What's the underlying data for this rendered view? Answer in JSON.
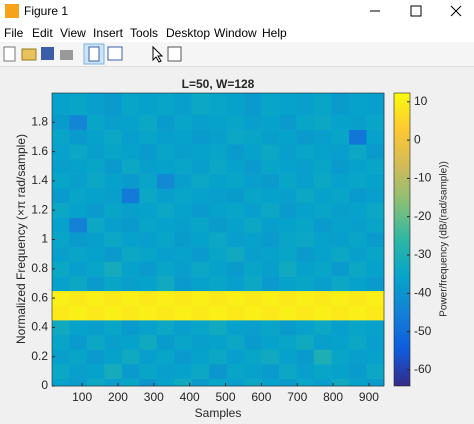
{
  "window": {
    "title": "Figure 1",
    "menu": [
      "File",
      "Edit",
      "View",
      "Insert",
      "Tools",
      "Desktop",
      "Window",
      "Help"
    ]
  },
  "chart_data": {
    "type": "heatmap",
    "title": "L=50, W=128",
    "x_label": "Samples",
    "y_label": "Normalized Frequency  (×π rad/sample)",
    "colorbar_label": "Power/frequency (dB/(rad/sample))",
    "x": [
      40,
      89,
      138,
      187,
      235,
      284,
      333,
      381,
      430,
      479,
      528,
      576,
      625,
      674,
      722,
      771,
      820,
      869,
      917
    ],
    "y": [
      0,
      0.1,
      0.2,
      0.3,
      0.4,
      0.5,
      0.6,
      0.7,
      0.8,
      0.9,
      1.0,
      1.1,
      1.2,
      1.3,
      1.4,
      1.5,
      1.6,
      1.7,
      1.8,
      1.9
    ],
    "z": [
      [
        -36,
        -38,
        -34,
        -37,
        -35,
        -39,
        -36,
        -33,
        -38,
        -35,
        -37,
        -34,
        -36,
        -38,
        -35,
        -37,
        -33,
        -36,
        -38
      ],
      [
        -34,
        -37,
        -36,
        -32,
        -38,
        -35,
        -37,
        -36,
        -34,
        -39,
        -35,
        -36,
        -38,
        -34,
        -37,
        -35,
        -36,
        -38,
        -34
      ],
      [
        -37,
        -35,
        -38,
        -36,
        -33,
        -37,
        -35,
        -38,
        -36,
        -34,
        -37,
        -35,
        -33,
        -36,
        -38,
        -30,
        -35,
        -37,
        -36
      ],
      [
        -35,
        -38,
        -34,
        -37,
        -36,
        -33,
        -38,
        -35,
        -37,
        -36,
        -34,
        -38,
        -36,
        -35,
        -33,
        -37,
        -36,
        -34,
        -37
      ],
      [
        -33,
        -36,
        -37,
        -35,
        -38,
        -36,
        -34,
        -37,
        -35,
        -33,
        -36,
        -37,
        -35,
        -38,
        -36,
        -34,
        -37,
        -35,
        -36
      ],
      [
        9,
        10,
        9,
        10,
        9,
        10,
        9,
        10,
        9,
        10,
        9,
        10,
        9,
        10,
        9,
        10,
        9,
        10,
        9
      ],
      [
        10,
        9,
        10,
        9,
        10,
        9,
        10,
        9,
        10,
        9,
        10,
        9,
        10,
        9,
        10,
        9,
        10,
        9,
        10
      ],
      [
        -36,
        -34,
        -38,
        -35,
        -37,
        -36,
        -33,
        -38,
        -36,
        -35,
        -37,
        -34,
        -38,
        -36,
        -35,
        -37,
        -34,
        -36,
        -38
      ],
      [
        -34,
        -37,
        -35,
        -32,
        -36,
        -38,
        -35,
        -37,
        -34,
        -36,
        -38,
        -35,
        -37,
        -33,
        -36,
        -35,
        -38,
        -34,
        -36
      ],
      [
        -37,
        -35,
        -36,
        -38,
        -34,
        -35,
        -37,
        -36,
        -38,
        -35,
        -33,
        -37,
        -36,
        -35,
        -38,
        -36,
        -34,
        -37,
        -35
      ],
      [
        -35,
        -38,
        -37,
        -34,
        -36,
        -37,
        -35,
        -38,
        -36,
        -34,
        -37,
        -36,
        -38,
        -35,
        -34,
        -36,
        -37,
        -35,
        -38
      ],
      [
        -36,
        -45,
        -34,
        -37,
        -38,
        -35,
        -36,
        -37,
        -35,
        -38,
        -36,
        -34,
        -37,
        -36,
        -35,
        -38,
        -36,
        -37,
        -35
      ],
      [
        -34,
        -36,
        -38,
        -35,
        -37,
        -36,
        -34,
        -36,
        -38,
        -36,
        -35,
        -37,
        -34,
        -38,
        -36,
        -35,
        -37,
        -36,
        -34
      ],
      [
        -38,
        -35,
        -36,
        -37,
        -47,
        -34,
        -37,
        -35,
        -36,
        -37,
        -38,
        -35,
        -36,
        -37,
        -34,
        -36,
        -35,
        -38,
        -37
      ],
      [
        -35,
        -37,
        -34,
        -36,
        -38,
        -35,
        -43,
        -37,
        -34,
        -36,
        -35,
        -37,
        -38,
        -35,
        -37,
        -34,
        -36,
        -35,
        -36
      ],
      [
        -37,
        -36,
        -35,
        -38,
        -34,
        -37,
        -36,
        -35,
        -37,
        -34,
        -36,
        -38,
        -35,
        -36,
        -37,
        -35,
        -38,
        -36,
        -35
      ],
      [
        -36,
        -34,
        -37,
        -35,
        -36,
        -38,
        -35,
        -37,
        -36,
        -35,
        -38,
        -36,
        -34,
        -37,
        -35,
        -36,
        -37,
        -34,
        -38
      ],
      [
        -35,
        -38,
        -36,
        -34,
        -37,
        -35,
        -37,
        -36,
        -38,
        -37,
        -34,
        -35,
        -37,
        -36,
        -38,
        -37,
        -35,
        -48,
        -36
      ],
      [
        -38,
        -44,
        -35,
        -37,
        -36,
        -34,
        -38,
        -35,
        -37,
        -36,
        -35,
        -37,
        -36,
        -38,
        -35,
        -34,
        -36,
        -37,
        -35
      ],
      [
        -36,
        -35,
        -37,
        -38,
        -35,
        -36,
        -35,
        -37,
        -34,
        -35,
        -36,
        -38,
        -35,
        -36,
        -37,
        -35,
        -38,
        -36,
        -37
      ]
    ],
    "xlim": [
      16,
      942
    ],
    "ylim": [
      0,
      2
    ],
    "clim": [
      -64.2,
      12.3
    ],
    "xticks": [
      100,
      200,
      300,
      400,
      500,
      600,
      700,
      800,
      900
    ],
    "yticks": [
      0,
      0.2,
      0.4,
      0.6,
      0.8,
      1,
      1.2,
      1.4,
      1.6,
      1.8
    ],
    "cticks": [
      10,
      0,
      -10,
      -20,
      -30,
      -40,
      -50,
      -60
    ],
    "colormap": [
      "#352a87",
      "#0f5cdd",
      "#1481d6",
      "#06a4ca",
      "#2eb7a4",
      "#87bf77",
      "#d1bb59",
      "#fec832",
      "#f9fb0e"
    ]
  }
}
